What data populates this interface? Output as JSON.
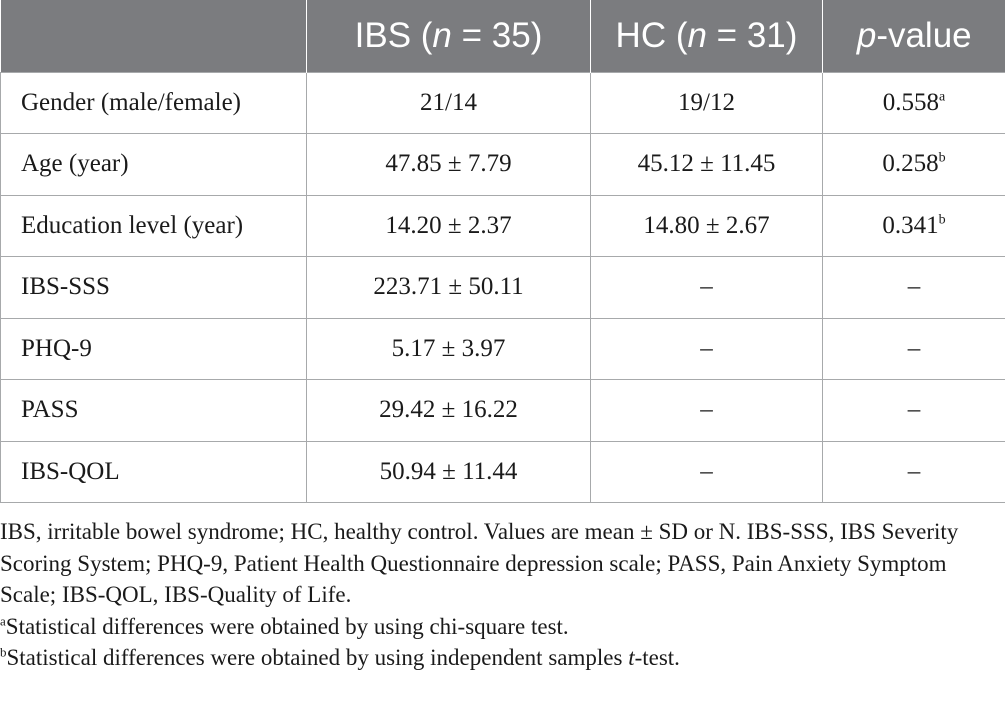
{
  "table": {
    "header": [
      {
        "text": "",
        "italic_part": "",
        "suffix": ""
      },
      {
        "text": "IBS (",
        "italic_part": "n",
        "suffix": " = 35)"
      },
      {
        "text": "HC (",
        "italic_part": "n",
        "suffix": " = 31)"
      },
      {
        "text": "",
        "italic_part": "p",
        "suffix": "-value"
      }
    ],
    "rows": [
      {
        "label": "Gender (male/female)",
        "ibs": "21/14",
        "hc": "19/12",
        "p": "0.558",
        "p_sup": "a"
      },
      {
        "label": "Age (year)",
        "ibs": "47.85 ± 7.79",
        "hc": "45.12 ± 11.45",
        "p": "0.258",
        "p_sup": "b"
      },
      {
        "label": "Education level (year)",
        "ibs": "14.20 ± 2.37",
        "hc": "14.80 ± 2.67",
        "p": "0.341",
        "p_sup": "b"
      },
      {
        "label": "IBS-SSS",
        "ibs": "223.71 ± 50.11",
        "hc": "–",
        "p": "–",
        "p_sup": ""
      },
      {
        "label": "PHQ-9",
        "ibs": "5.17 ± 3.97",
        "hc": "–",
        "p": "–",
        "p_sup": ""
      },
      {
        "label": "PASS",
        "ibs": "29.42 ± 16.22",
        "hc": "–",
        "p": "–",
        "p_sup": ""
      },
      {
        "label": "IBS-QOL",
        "ibs": "50.94 ± 11.44",
        "hc": "–",
        "p": "–",
        "p_sup": ""
      }
    ]
  },
  "notes": {
    "abbreviations": "IBS, irritable bowel syndrome; HC, healthy control. Values are mean ± SD or N. IBS-SSS, IBS Severity Scoring System; PHQ-9, Patient Health Questionnaire depression scale; PASS, Pain Anxiety Symptom Scale; IBS-QOL, IBS-Quality of Life.",
    "footnote_a": {
      "mark": "a",
      "text": "Statistical differences were obtained by using chi-square test."
    },
    "footnote_b": {
      "mark": "b",
      "text_before": "Statistical differences were obtained by using independent samples ",
      "italic": "t",
      "text_after": "-test."
    }
  }
}
